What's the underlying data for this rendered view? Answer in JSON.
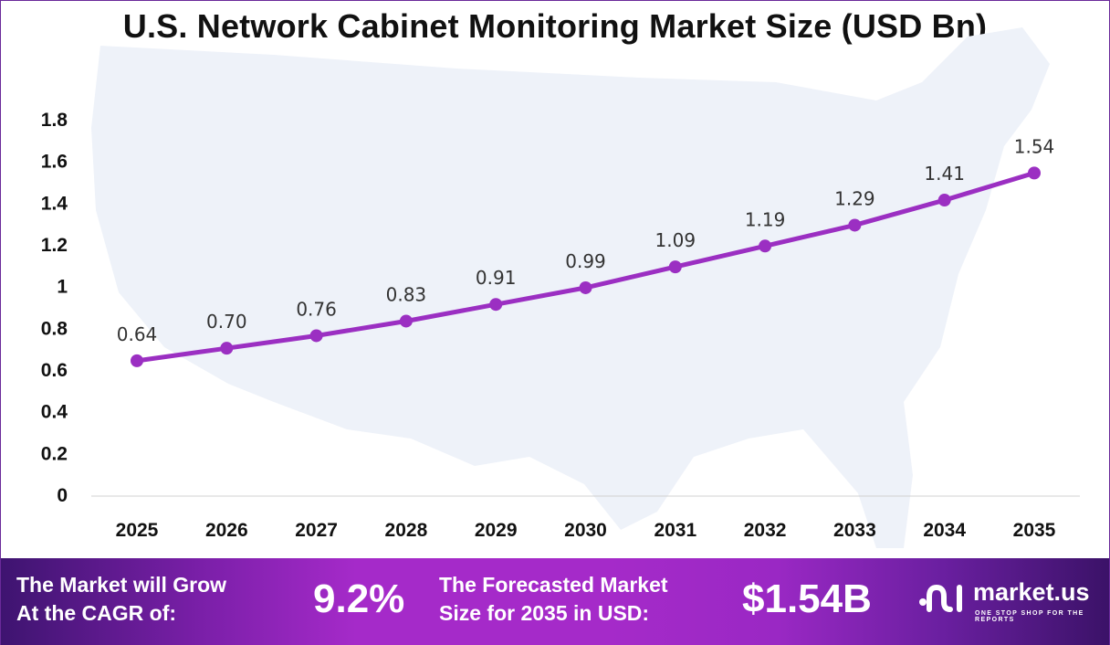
{
  "chart_data": {
    "type": "line",
    "title": "U.S. Network Cabinet Monitoring Market Size (USD Bn)",
    "categories": [
      "2025",
      "2026",
      "2027",
      "2028",
      "2029",
      "2030",
      "2031",
      "2032",
      "2033",
      "2034",
      "2035"
    ],
    "values": [
      0.64,
      0.7,
      0.76,
      0.83,
      0.91,
      0.99,
      1.09,
      1.19,
      1.29,
      1.41,
      1.54
    ],
    "data_labels": [
      "0.64",
      "0.70",
      "0.76",
      "0.83",
      "0.91",
      "0.99",
      "1.09",
      "1.19",
      "1.29",
      "1.41",
      "1.54"
    ],
    "yticks": [
      "0",
      "0.2",
      "0.4",
      "0.6",
      "0.8",
      "1",
      "1.2",
      "1.4",
      "1.6",
      "1.8"
    ],
    "ylim": [
      0,
      1.8
    ],
    "xlabel": "",
    "ylabel": "",
    "grid": false,
    "line_color": "#9b2fc2",
    "background": "faint U.S. map silhouette"
  },
  "footer": {
    "cagr_label_1": "The Market will Grow",
    "cagr_label_2": "At the CAGR of:",
    "cagr_value": "9.2%",
    "forecast_label_1": "The Forecasted Market",
    "forecast_label_2": "Size for 2035 in USD:",
    "forecast_value": "$1.54B",
    "logo_name": "market.us",
    "logo_tagline": "ONE STOP SHOP FOR THE REPORTS"
  }
}
